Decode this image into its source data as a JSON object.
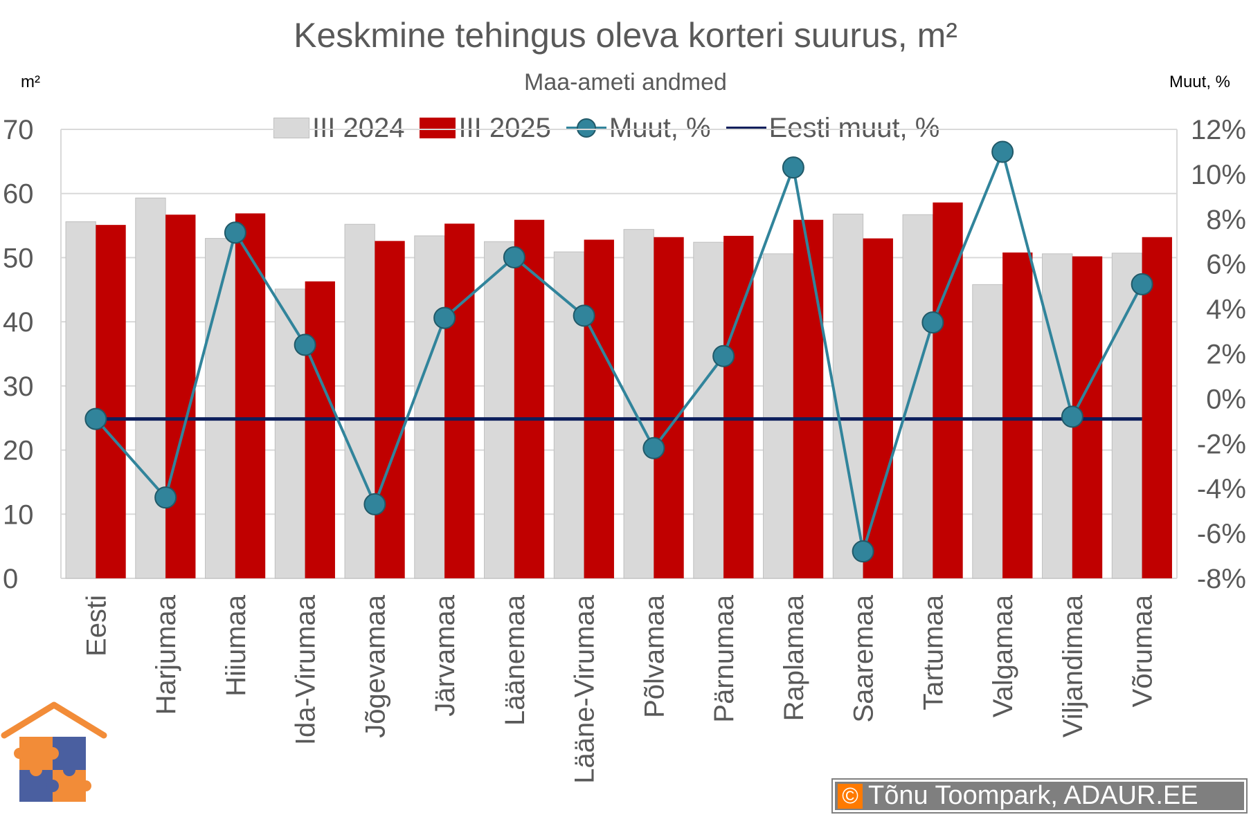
{
  "header": {
    "title": "Keskmine tehingus oleva korteri suurus, m²",
    "subtitle": "Maa-ameti andmed",
    "left_unit": "m²",
    "right_unit": "Muut, %"
  },
  "legend": {
    "item_2024": "III 2024",
    "item_2025": "III 2025",
    "item_change": "Muut, %",
    "item_estonia": "Eesti muut, %"
  },
  "colors": {
    "bar_2024": "#d9d9d9",
    "bar_2024_border": "#bfbfbf",
    "bar_2025": "#c00000",
    "change_line": "#31849b",
    "estonia_line": "#0d1f5c",
    "grid": "#d9d9d9",
    "logo_roof": "#f28c38",
    "logo_orange": "#f28c38",
    "logo_blue": "#4a5fa0"
  },
  "footer": {
    "copyright_symbol": "©",
    "credit": "Tõnu Toompark, ADAUR.EE"
  },
  "chart_data": {
    "type": "bar",
    "categories": [
      "Eesti",
      "Harjumaa",
      "Hiiumaa",
      "Ida-Virumaa",
      "Jõgevamaa",
      "Järvamaa",
      "Läänemaa",
      "Lääne-Virumaa",
      "Põlvamaa",
      "Pärnumaa",
      "Raplamaa",
      "Saaremaa",
      "Tartumaa",
      "Valgamaa",
      "Viljandimaa",
      "Võrumaa"
    ],
    "series": [
      {
        "name": "III 2024",
        "type": "bar",
        "axis": "left",
        "values": [
          55.6,
          59.3,
          53.0,
          45.1,
          55.2,
          53.4,
          52.5,
          50.9,
          54.4,
          52.4,
          50.6,
          56.8,
          56.7,
          45.8,
          50.6,
          50.7
        ]
      },
      {
        "name": "III 2025",
        "type": "bar",
        "axis": "left",
        "values": [
          55.1,
          56.7,
          56.9,
          46.3,
          52.6,
          55.3,
          55.9,
          52.8,
          53.2,
          53.4,
          55.9,
          53.0,
          58.6,
          50.8,
          50.2,
          53.2
        ]
      },
      {
        "name": "Muut, %",
        "type": "line",
        "axis": "right",
        "values": [
          -0.9,
          -4.4,
          7.4,
          2.4,
          -4.7,
          3.6,
          6.3,
          3.7,
          -2.2,
          1.9,
          10.3,
          -6.8,
          3.4,
          11.0,
          -0.8,
          5.1
        ]
      },
      {
        "name": "Eesti muut, %",
        "type": "line",
        "axis": "right",
        "values": [
          -0.9,
          -0.9,
          -0.9,
          -0.9,
          -0.9,
          -0.9,
          -0.9,
          -0.9,
          -0.9,
          -0.9,
          -0.9,
          -0.9,
          -0.9,
          -0.9,
          -0.9,
          -0.9
        ]
      }
    ],
    "y_left": {
      "min": 0,
      "max": 70,
      "step": 10,
      "ticks": [
        "0",
        "10",
        "20",
        "30",
        "40",
        "50",
        "60",
        "70"
      ]
    },
    "y_right": {
      "min": -8,
      "max": 12,
      "step": 2,
      "ticks": [
        "-8%",
        "-6%",
        "-4%",
        "-2%",
        "0%",
        "2%",
        "4%",
        "6%",
        "8%",
        "10%",
        "12%"
      ]
    },
    "grid": true,
    "legend_position": "top"
  }
}
